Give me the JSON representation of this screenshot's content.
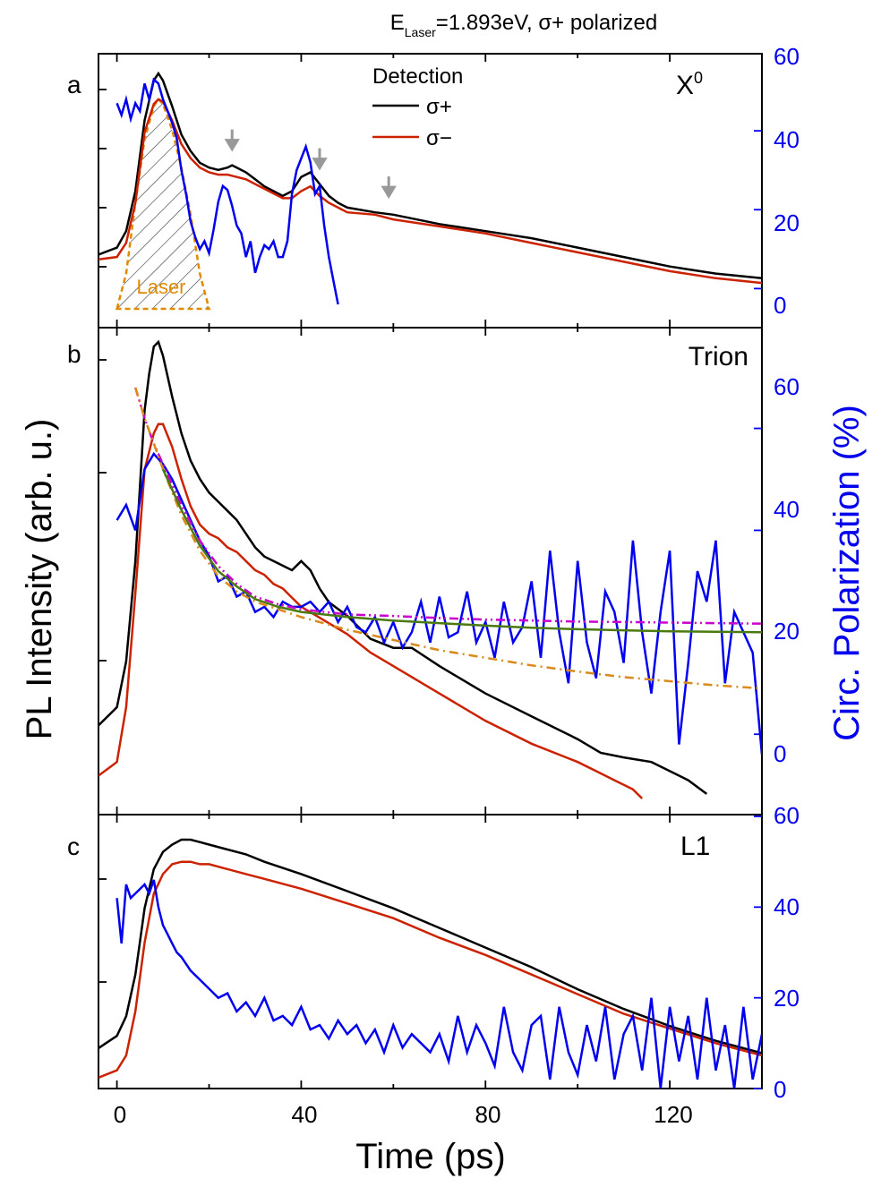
{
  "header": {
    "title_prefix": "E",
    "title_subscript": "Laser",
    "title_suffix": "=1.893eV, σ+ polarized"
  },
  "colors": {
    "sigma_plus": "#000000",
    "sigma_minus": "#cc2200",
    "polarization": "#0000ee",
    "laser": "#e08a00",
    "fit_green": "#4a7a10",
    "fit_magenta": "#cc00cc",
    "fit_orange": "#d98a1a",
    "arrows": "#999999"
  },
  "axes": {
    "xlabel": "Time (ps)",
    "ylabel_left": "PL Intensity (arb. u.)",
    "ylabel_right": "Circ. Polarization (%)",
    "x_ticks": [
      "0",
      "40",
      "80",
      "120"
    ]
  },
  "legend": {
    "title": "Detection",
    "sigma_plus": "σ+",
    "sigma_minus": "σ−"
  },
  "panels": [
    {
      "id": "a",
      "label": "a",
      "species_base": "X",
      "species_sup": "0",
      "laser_label": "Laser",
      "right_ticks": [
        "0",
        "20",
        "40",
        "60"
      ]
    },
    {
      "id": "b",
      "label": "b",
      "species": "Trion",
      "right_ticks": [
        "0",
        "20",
        "40",
        "60"
      ]
    },
    {
      "id": "c",
      "label": "c",
      "species": "L1",
      "right_ticks": [
        "0",
        "20",
        "40",
        "60"
      ]
    }
  ],
  "chart_data": [
    {
      "panel": "a",
      "type": "line",
      "xlim": [
        -4,
        140
      ],
      "y_right_lim": [
        -4,
        60
      ],
      "y_left": "log intensity (arb. u., relative)",
      "series": [
        {
          "name": "σ+",
          "axis": "left",
          "x": [
            -4,
            0,
            2,
            4,
            6,
            8,
            9,
            10,
            12,
            14,
            16,
            18,
            20,
            22,
            24,
            25,
            26,
            28,
            30,
            32,
            34,
            36,
            38,
            40,
            42,
            44,
            46,
            48,
            50,
            56,
            60,
            70,
            80,
            90,
            100,
            110,
            120,
            130,
            140
          ],
          "y": [
            0.23,
            0.26,
            0.33,
            0.5,
            0.8,
            0.97,
            1.0,
            0.97,
            0.86,
            0.74,
            0.67,
            0.62,
            0.6,
            0.59,
            0.6,
            0.61,
            0.6,
            0.58,
            0.55,
            0.52,
            0.5,
            0.48,
            0.5,
            0.56,
            0.58,
            0.53,
            0.48,
            0.45,
            0.43,
            0.41,
            0.4,
            0.36,
            0.33,
            0.3,
            0.26,
            0.22,
            0.18,
            0.15,
            0.13
          ]
        },
        {
          "name": "σ−",
          "axis": "left",
          "x": [
            -4,
            0,
            2,
            4,
            6,
            8,
            9,
            10,
            12,
            14,
            16,
            18,
            20,
            22,
            24,
            26,
            28,
            30,
            32,
            34,
            36,
            38,
            40,
            42,
            44,
            46,
            48,
            50,
            56,
            60,
            70,
            80,
            90,
            100,
            110,
            120,
            130,
            140
          ],
          "y": [
            0.21,
            0.22,
            0.28,
            0.45,
            0.75,
            0.87,
            0.89,
            0.88,
            0.8,
            0.7,
            0.64,
            0.6,
            0.58,
            0.57,
            0.57,
            0.56,
            0.55,
            0.53,
            0.51,
            0.49,
            0.47,
            0.47,
            0.5,
            0.52,
            0.48,
            0.45,
            0.43,
            0.41,
            0.4,
            0.38,
            0.35,
            0.32,
            0.28,
            0.24,
            0.2,
            0.16,
            0.13,
            0.11
          ]
        },
        {
          "name": "Laser",
          "axis": "left",
          "x": [
            0,
            2,
            4,
            6,
            8,
            9,
            10,
            12,
            14,
            16,
            18,
            20
          ],
          "y": [
            0.0,
            0.15,
            0.45,
            0.72,
            0.86,
            0.89,
            0.87,
            0.76,
            0.6,
            0.4,
            0.15,
            0.0
          ]
        },
        {
          "name": "Circ. Polarization",
          "axis": "right",
          "x": [
            0,
            1,
            2,
            3,
            4,
            5,
            6,
            7,
            8,
            9,
            10,
            11,
            12,
            13,
            14,
            15,
            16,
            17,
            18,
            19,
            20,
            21,
            22,
            23,
            24,
            25,
            26,
            27,
            28,
            29,
            30,
            31,
            32,
            33,
            34,
            35,
            36,
            37,
            38,
            39,
            40,
            41,
            42,
            43,
            44,
            45,
            46,
            47,
            48
          ],
          "y": [
            47,
            44,
            48,
            43,
            47,
            45,
            52,
            48,
            53,
            52,
            48,
            45,
            42,
            38,
            30,
            24,
            17,
            13,
            10,
            12,
            9,
            15,
            22,
            26,
            25,
            21,
            16,
            14,
            8,
            12,
            4,
            8,
            11,
            10,
            12,
            8,
            8,
            12,
            24,
            30,
            33,
            36,
            32,
            24,
            26,
            16,
            8,
            2,
            -4
          ]
        }
      ],
      "annotations": [
        {
          "type": "arrow",
          "x": 25
        },
        {
          "type": "arrow",
          "x": 44
        },
        {
          "type": "arrow",
          "x": 59
        }
      ]
    },
    {
      "panel": "b",
      "type": "line",
      "xlim": [
        -4,
        140
      ],
      "y_right_lim": [
        -4,
        68
      ],
      "y_left": "log intensity (arb. u., relative)",
      "series": [
        {
          "name": "σ+",
          "axis": "left",
          "x": [
            -4,
            0,
            2,
            4,
            6,
            7,
            8,
            9,
            10,
            12,
            14,
            16,
            18,
            20,
            22,
            24,
            26,
            28,
            30,
            32,
            34,
            36,
            38,
            40,
            42,
            44,
            46,
            50,
            55,
            60,
            64,
            70,
            80,
            90,
            100,
            105,
            110,
            116,
            120,
            124,
            128
          ],
          "y": [
            0.16,
            0.2,
            0.3,
            0.52,
            0.85,
            0.93,
            0.99,
            1.0,
            0.97,
            0.88,
            0.8,
            0.74,
            0.7,
            0.67,
            0.65,
            0.63,
            0.61,
            0.58,
            0.55,
            0.53,
            0.52,
            0.51,
            0.5,
            0.52,
            0.5,
            0.46,
            0.43,
            0.4,
            0.35,
            0.33,
            0.33,
            0.29,
            0.23,
            0.18,
            0.13,
            0.1,
            0.09,
            0.08,
            0.06,
            0.04,
            0.01
          ]
        },
        {
          "name": "σ−",
          "axis": "left",
          "x": [
            -4,
            0,
            2,
            4,
            6,
            8,
            9,
            10,
            12,
            14,
            16,
            18,
            20,
            22,
            24,
            26,
            28,
            30,
            32,
            34,
            36,
            38,
            40,
            45,
            50,
            55,
            60,
            70,
            80,
            90,
            100,
            104,
            108,
            112,
            114
          ],
          "y": [
            0.05,
            0.08,
            0.2,
            0.45,
            0.72,
            0.8,
            0.82,
            0.82,
            0.77,
            0.7,
            0.64,
            0.6,
            0.58,
            0.57,
            0.55,
            0.54,
            0.52,
            0.5,
            0.49,
            0.47,
            0.46,
            0.44,
            0.42,
            0.39,
            0.36,
            0.32,
            0.29,
            0.23,
            0.17,
            0.12,
            0.08,
            0.06,
            0.04,
            0.02,
            0.0
          ]
        },
        {
          "name": "Circ. Polarization",
          "axis": "right",
          "x": [
            0,
            2,
            4,
            6,
            8,
            10,
            12,
            14,
            16,
            18,
            20,
            22,
            24,
            26,
            28,
            30,
            32,
            34,
            36,
            38,
            40,
            42,
            44,
            46,
            48,
            50,
            52,
            54,
            56,
            58,
            60,
            62,
            64,
            66,
            68,
            70,
            72,
            74,
            76,
            78,
            80,
            82,
            84,
            86,
            88,
            90,
            92,
            94,
            96,
            98,
            100,
            102,
            104,
            106,
            108,
            110,
            112,
            114,
            116,
            118,
            120,
            122,
            124,
            126,
            128,
            130,
            132,
            134,
            136,
            138,
            140
          ],
          "y": [
            42,
            45,
            40,
            52,
            55,
            53,
            50,
            46,
            42,
            38,
            35,
            30,
            31,
            27,
            28,
            24,
            25,
            23,
            26,
            25,
            25,
            26,
            24,
            26,
            22,
            25,
            21,
            20,
            23,
            18,
            22,
            17,
            20,
            26,
            18,
            27,
            19,
            20,
            28,
            18,
            22,
            15,
            26,
            18,
            21,
            30,
            15,
            36,
            20,
            10,
            34,
            18,
            11,
            28,
            24,
            14,
            38,
            20,
            8,
            24,
            36,
            -2,
            14,
            32,
            26,
            38,
            10,
            24,
            20,
            16,
            -4
          ]
        },
        {
          "name": "fit (green)",
          "axis": "right",
          "x": [
            10,
            14,
            18,
            22,
            26,
            30,
            35,
            40,
            50,
            60,
            70,
            80,
            90,
            100,
            110,
            120,
            130,
            140
          ],
          "y": [
            52,
            44,
            37,
            32,
            29,
            26.5,
            25,
            24,
            23,
            22.3,
            21.8,
            21.3,
            20.9,
            20.6,
            20.4,
            20.2,
            20.1,
            20.0
          ]
        },
        {
          "name": "fit (magenta)",
          "axis": "right",
          "x": [
            4,
            6,
            8,
            10,
            14,
            18,
            22,
            26,
            30,
            35,
            40,
            50,
            60,
            70,
            80,
            90,
            100,
            110,
            120,
            130,
            140
          ],
          "y": [
            68,
            62,
            57,
            53,
            45,
            38,
            33,
            29.5,
            27,
            25.5,
            24.5,
            23.5,
            23.2,
            22.8,
            22.5,
            22.3,
            22.1,
            22.0,
            21.9,
            21.8,
            21.7
          ]
        },
        {
          "name": "fit (orange)",
          "axis": "right",
          "x": [
            4,
            6,
            8,
            10,
            14,
            18,
            22,
            26,
            30,
            35,
            40,
            50,
            60,
            70,
            80,
            90,
            100,
            110,
            120,
            130,
            140
          ],
          "y": [
            68,
            62,
            57,
            52,
            43,
            36,
            31,
            28,
            26,
            24.5,
            23,
            20.5,
            18.5,
            16.5,
            15,
            13.5,
            12.3,
            11.2,
            10.4,
            9.6,
            9.0
          ]
        }
      ]
    },
    {
      "panel": "c",
      "type": "line",
      "xlim": [
        -4,
        140
      ],
      "y_right_lim": [
        0,
        60
      ],
      "y_left": "log intensity (arb. u., relative)",
      "series": [
        {
          "name": "σ+",
          "axis": "left",
          "x": [
            -4,
            0,
            2,
            4,
            6,
            8,
            10,
            12,
            14,
            16,
            18,
            20,
            24,
            28,
            32,
            40,
            50,
            60,
            70,
            80,
            90,
            100,
            110,
            120,
            130,
            140
          ],
          "y": [
            0.15,
            0.2,
            0.28,
            0.45,
            0.72,
            0.88,
            0.95,
            0.98,
            1.0,
            1.0,
            0.99,
            0.98,
            0.96,
            0.94,
            0.91,
            0.86,
            0.79,
            0.72,
            0.64,
            0.56,
            0.48,
            0.39,
            0.31,
            0.24,
            0.18,
            0.13
          ]
        },
        {
          "name": "σ−",
          "axis": "left",
          "x": [
            -4,
            0,
            2,
            4,
            6,
            8,
            10,
            12,
            14,
            16,
            18,
            20,
            24,
            28,
            32,
            40,
            50,
            60,
            70,
            80,
            90,
            100,
            110,
            120,
            130,
            140
          ],
          "y": [
            0.03,
            0.06,
            0.12,
            0.3,
            0.58,
            0.78,
            0.86,
            0.9,
            0.91,
            0.91,
            0.9,
            0.9,
            0.88,
            0.86,
            0.84,
            0.8,
            0.74,
            0.68,
            0.6,
            0.53,
            0.45,
            0.37,
            0.29,
            0.23,
            0.17,
            0.12
          ]
        },
        {
          "name": "Circ. Polarization",
          "axis": "right",
          "x": [
            0,
            1,
            2,
            3,
            4,
            5,
            6,
            7,
            8,
            9,
            10,
            11,
            12,
            13,
            14,
            16,
            18,
            20,
            22,
            24,
            26,
            28,
            30,
            32,
            34,
            36,
            38,
            40,
            42,
            44,
            46,
            48,
            50,
            52,
            54,
            56,
            58,
            60,
            62,
            64,
            66,
            68,
            70,
            72,
            74,
            76,
            78,
            80,
            82,
            84,
            86,
            88,
            90,
            92,
            94,
            96,
            98,
            100,
            102,
            104,
            106,
            108,
            110,
            112,
            114,
            116,
            118,
            120,
            122,
            124,
            126,
            128,
            130,
            132,
            134,
            136,
            138,
            140
          ],
          "y": [
            42,
            32,
            45,
            42,
            43,
            44,
            45,
            43,
            46,
            40,
            36,
            34,
            32,
            30,
            29,
            26,
            24,
            22,
            20,
            21,
            17,
            19,
            16,
            20,
            15,
            16,
            14,
            18,
            13,
            14,
            11,
            15,
            12,
            14,
            10,
            13,
            8,
            14,
            9,
            12,
            10,
            8,
            12,
            6,
            16,
            8,
            14,
            10,
            5,
            18,
            8,
            4,
            14,
            16,
            2,
            18,
            8,
            3,
            14,
            6,
            18,
            2,
            12,
            16,
            4,
            20,
            0,
            18,
            6,
            16,
            2,
            20,
            4,
            14,
            0,
            18,
            2,
            12
          ]
        }
      ]
    }
  ]
}
